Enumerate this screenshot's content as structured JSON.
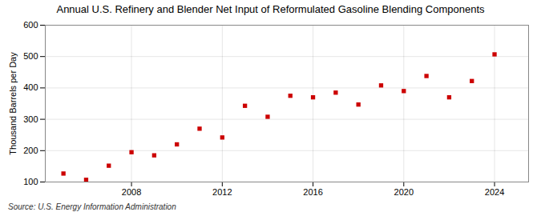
{
  "chart_data": {
    "type": "scatter",
    "title": "Annual U.S. Refinery and Blender Net Input of Reformulated Gasoline Blending Components",
    "ylabel": "Thousand Barrels per Day",
    "source": "Source: U.S. Energy Information Administration",
    "x": [
      2005,
      2006,
      2007,
      2008,
      2009,
      2010,
      2011,
      2012,
      2013,
      2014,
      2015,
      2016,
      2017,
      2018,
      2019,
      2020,
      2021,
      2022,
      2023,
      2024
    ],
    "values": [
      127,
      107,
      152,
      195,
      185,
      220,
      270,
      242,
      343,
      308,
      375,
      370,
      385,
      347,
      408,
      390,
      438,
      370,
      422,
      507
    ],
    "color": "#cc0000",
    "marker": "square",
    "grid": true,
    "xlim": [
      2004.2,
      2025.5
    ],
    "xticks": [
      2008,
      2012,
      2016,
      2020,
      2024
    ],
    "ylim": [
      100,
      600
    ],
    "yticks": [
      100,
      200,
      300,
      400,
      500,
      600
    ]
  }
}
